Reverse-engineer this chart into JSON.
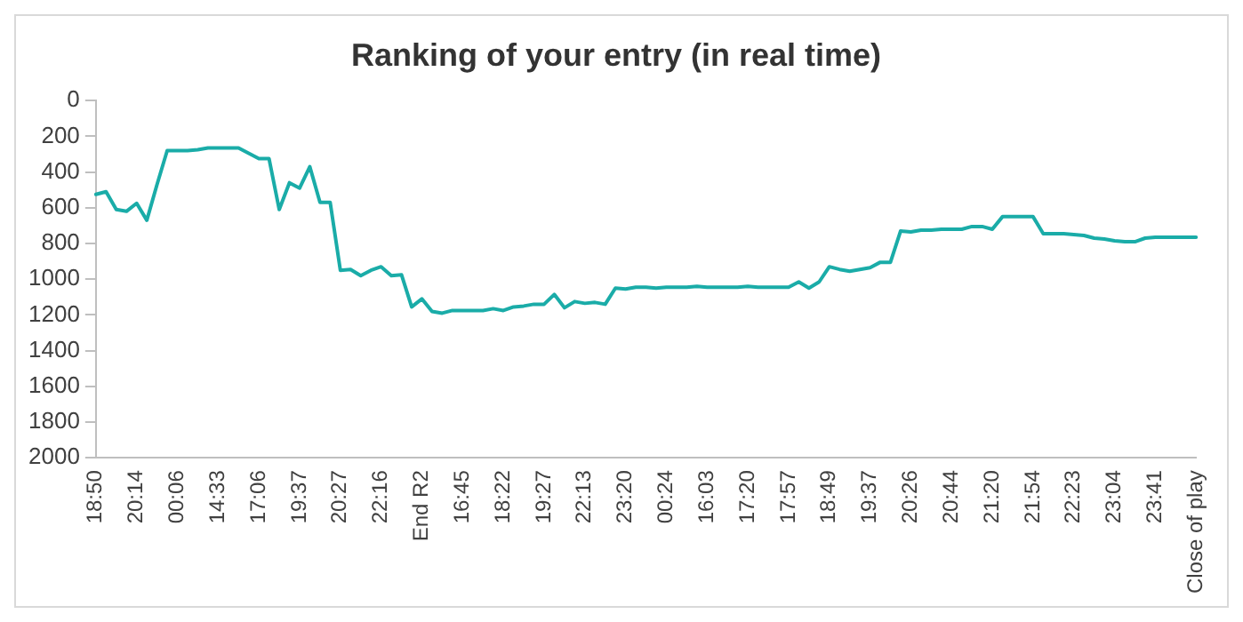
{
  "chart_data": {
    "type": "line",
    "title": "Ranking of your entry (in real time)",
    "categories": [
      "18:50",
      null,
      null,
      null,
      "20:14",
      null,
      null,
      null,
      "00:06",
      null,
      null,
      null,
      "14:33",
      null,
      null,
      null,
      "17:06",
      null,
      null,
      null,
      "19:37",
      null,
      null,
      null,
      "20:27",
      null,
      null,
      null,
      "22:16",
      null,
      null,
      null,
      "End R2",
      null,
      null,
      null,
      "16:45",
      null,
      null,
      null,
      "18:22",
      null,
      null,
      null,
      "19:27",
      null,
      null,
      null,
      "22:13",
      null,
      null,
      null,
      "23:20",
      null,
      null,
      null,
      "00:24",
      null,
      null,
      null,
      "16:03",
      null,
      null,
      null,
      "17:20",
      null,
      null,
      null,
      "17:57",
      null,
      null,
      null,
      "18:49",
      null,
      null,
      null,
      "19:37",
      null,
      null,
      null,
      "20:26",
      null,
      null,
      null,
      "20:44",
      null,
      null,
      null,
      "21:20",
      null,
      null,
      null,
      "21:54",
      null,
      null,
      null,
      "22:23",
      null,
      null,
      null,
      "23:04",
      null,
      null,
      null,
      "23:41",
      null,
      null,
      null,
      "Close of play"
    ],
    "series": [
      {
        "color": "#1aaca8",
        "values": [
          525,
          510,
          610,
          620,
          575,
          670,
          470,
          280,
          280,
          280,
          275,
          265,
          265,
          265,
          265,
          295,
          325,
          325,
          610,
          460,
          490,
          370,
          570,
          570,
          950,
          945,
          980,
          950,
          930,
          980,
          975,
          1155,
          1110,
          1180,
          1190,
          1175,
          1175,
          1175,
          1175,
          1165,
          1175,
          1155,
          1150,
          1140,
          1140,
          1085,
          1160,
          1125,
          1135,
          1130,
          1140,
          1050,
          1055,
          1045,
          1045,
          1050,
          1045,
          1045,
          1045,
          1040,
          1045,
          1045,
          1045,
          1045,
          1040,
          1045,
          1045,
          1045,
          1045,
          1015,
          1050,
          1015,
          930,
          945,
          955,
          945,
          935,
          905,
          905,
          730,
          735,
          725,
          725,
          720,
          720,
          720,
          705,
          705,
          720,
          650,
          650,
          650,
          650,
          745,
          745,
          745,
          750,
          755,
          770,
          775,
          785,
          790,
          790,
          770,
          765,
          765,
          765,
          765,
          765
        ]
      }
    ],
    "ylim": [
      2000,
      0
    ],
    "yticks": [
      0,
      200,
      400,
      600,
      800,
      1000,
      1200,
      1400,
      1600,
      1800,
      2000
    ],
    "grid": false,
    "legend": false,
    "marker": "none",
    "line_style": "solid"
  }
}
